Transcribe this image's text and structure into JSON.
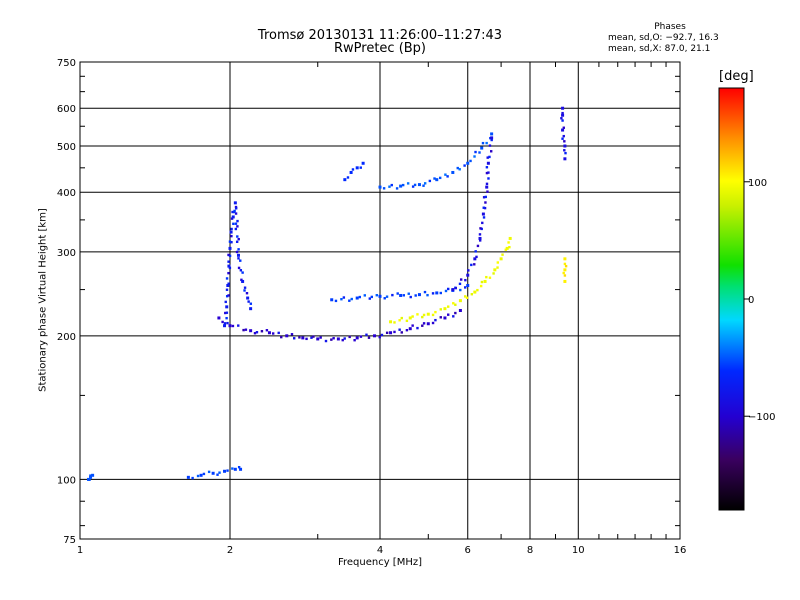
{
  "title": {
    "line1": "Tromsø 20130131 11:26:00–11:27:43",
    "line2": "RwPretec (Bp)"
  },
  "phases_box": {
    "title": "Phases",
    "line_o": "mean, sd,O: −92.7, 16.3",
    "line_x": "mean, sd,X:  87.0, 21.1"
  },
  "colorbar": {
    "unit": "[deg]",
    "ticks": [
      "100",
      "0",
      "−100"
    ],
    "tick_values": [
      100,
      0,
      -100
    ],
    "range": [
      -180,
      180
    ],
    "colormap": "rainbow (black → violet → blue → cyan → green → yellow → red)"
  },
  "chart_data": {
    "type": "scatter",
    "xlabel": "Frequency [MHz]",
    "ylabel": "Stationary phase Virtual Height [km]",
    "x_scale": "log",
    "y_scale": "log",
    "xlim": [
      1,
      16
    ],
    "ylim": [
      75,
      750
    ],
    "x_ticks": [
      1,
      2,
      4,
      6,
      8,
      10,
      16
    ],
    "y_ticks": [
      75,
      100,
      200,
      300,
      400,
      500,
      600,
      750
    ],
    "grid": true,
    "color_encodes": "phase [deg]",
    "traces": [
      {
        "name": "",
        "x": [
          1.65,
          1.75,
          1.85,
          1.95,
          2.05,
          2.1
        ],
        "y": [
          101,
          102,
          103,
          104,
          105,
          105
        ],
        "phase": -95
      },
      {
        "name": "",
        "x": [
          1.95,
          1.97,
          1.98,
          1.99,
          2.0,
          2.01,
          2.03,
          2.05,
          2.08,
          2.12,
          2.17,
          2.2
        ],
        "y": [
          210,
          230,
          255,
          280,
          305,
          330,
          355,
          380,
          295,
          260,
          240,
          228
        ],
        "phase": -105
      },
      {
        "name": "",
        "x": [
          1.9,
          2.0,
          2.2,
          2.4,
          2.6,
          2.8,
          3.0,
          3.3,
          3.6,
          3.9,
          4.2,
          4.6,
          5.0,
          5.4,
          5.8
        ],
        "y": [
          218,
          210,
          205,
          203,
          200,
          198,
          197,
          197,
          198,
          200,
          203,
          207,
          212,
          218,
          226
        ],
        "phase": -115
      },
      {
        "name": "",
        "x": [
          3.2,
          3.6,
          4.0,
          4.4,
          4.8,
          5.2,
          5.6,
          6.0
        ],
        "y": [
          238,
          240,
          242,
          243,
          244,
          246,
          249,
          255
        ],
        "phase": -95
      },
      {
        "name": "",
        "x": [
          4.0,
          4.4,
          4.8,
          5.2,
          5.6,
          6.0,
          6.4,
          6.7
        ],
        "y": [
          410,
          412,
          415,
          425,
          440,
          460,
          495,
          530
        ],
        "phase": -90
      },
      {
        "name": "",
        "x": [
          4.2,
          4.6,
          5.0,
          5.4,
          5.8,
          6.2,
          6.5,
          6.8,
          7.0,
          7.2,
          7.3
        ],
        "y": [
          214,
          218,
          222,
          228,
          237,
          247,
          260,
          275,
          290,
          305,
          320
        ],
        "phase": 90
      },
      {
        "name": "",
        "x": [
          5.6,
          6.0,
          6.2,
          6.35,
          6.45,
          6.55,
          6.6,
          6.7
        ],
        "y": [
          250,
          268,
          290,
          320,
          360,
          410,
          460,
          520
        ],
        "phase": -110
      },
      {
        "name": "",
        "x": [
          3.4,
          3.5,
          3.6,
          3.7
        ],
        "y": [
          425,
          440,
          450,
          460
        ],
        "phase": -100
      },
      {
        "name": "",
        "x": [
          1.04,
          1.05,
          1.06
        ],
        "y": [
          100,
          101,
          102
        ],
        "phase": -90
      },
      {
        "name": "",
        "x": [
          9.3,
          9.3,
          9.3,
          9.4,
          9.4
        ],
        "y": [
          600,
          580,
          540,
          500,
          470
        ],
        "phase": -110
      },
      {
        "name": "",
        "x": [
          9.4,
          9.4,
          9.4
        ],
        "y": [
          290,
          275,
          260
        ],
        "phase": 105
      }
    ]
  }
}
